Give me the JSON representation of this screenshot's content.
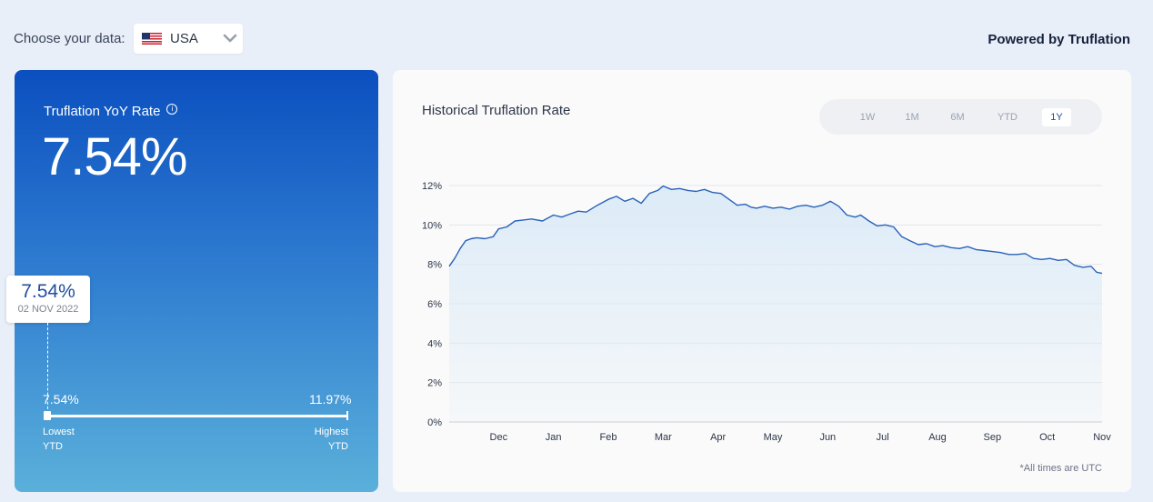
{
  "header": {
    "choose_label": "Choose your data:",
    "selected_country": "USA",
    "powered_by": "Powered by Truflation"
  },
  "summary": {
    "title": "Truflation YoY Rate",
    "info_icon": "info-icon",
    "value": "7.54%",
    "tooltip": {
      "value": "7.54%",
      "date": "02 NOV 2022"
    },
    "low": {
      "value": "7.54%",
      "label_line1": "Lowest",
      "label_line2": "YTD"
    },
    "high": {
      "value": "11.97%",
      "label_line1": "Highest",
      "label_line2": "YTD"
    },
    "current_position": 0.0
  },
  "chart_panel": {
    "title": "Historical Truflation Rate",
    "tabs": [
      {
        "label": "1W",
        "active": false
      },
      {
        "label": "1M",
        "active": false
      },
      {
        "label": "6M",
        "active": false
      },
      {
        "label": "YTD",
        "active": false
      },
      {
        "label": "1Y",
        "active": true
      }
    ],
    "note": "*All times are UTC"
  },
  "chart_data": {
    "type": "area",
    "title": "Historical Truflation Rate",
    "xlabel": "",
    "ylabel": "",
    "ylim": [
      0,
      12
    ],
    "yticks": [
      0,
      2,
      4,
      6,
      8,
      10,
      12
    ],
    "ytick_labels": [
      "0%",
      "2%",
      "4%",
      "6%",
      "8%",
      "10%",
      "12%"
    ],
    "xtick_labels": [
      "Dec",
      "Jan",
      "Feb",
      "Mar",
      "Apr",
      "May",
      "Jun",
      "Jul",
      "Aug",
      "Sep",
      "Oct",
      "Nov"
    ],
    "xtick_positions": [
      1,
      2,
      3,
      4,
      5,
      6,
      7,
      8,
      9,
      10,
      11,
      12
    ],
    "x_range": [
      0.1,
      12
    ],
    "grid": true,
    "line_color": "#2a62b8",
    "fill_color": "#dcebf7",
    "series": [
      {
        "x": [
          0.1,
          0.2,
          0.3,
          0.4,
          0.5,
          0.6,
          0.75,
          0.9,
          1.0,
          1.15,
          1.3,
          1.45,
          1.6,
          1.8,
          2.0,
          2.15,
          2.3,
          2.45,
          2.6,
          2.8,
          3.0,
          3.15,
          3.3,
          3.45,
          3.6,
          3.75,
          3.9,
          4.0,
          4.15,
          4.3,
          4.45,
          4.6,
          4.75,
          4.9,
          5.05,
          5.2,
          5.35,
          5.5,
          5.6,
          5.7,
          5.85,
          6.0,
          6.15,
          6.3,
          6.45,
          6.6,
          6.75,
          6.9,
          7.05,
          7.2,
          7.35,
          7.5,
          7.6,
          7.75,
          7.9,
          8.05,
          8.2,
          8.35,
          8.5,
          8.65,
          8.8,
          8.95,
          9.1,
          9.25,
          9.4,
          9.55,
          9.7,
          9.85,
          10.0,
          10.15,
          10.3,
          10.45,
          10.6,
          10.75,
          10.9,
          11.05,
          11.2,
          11.35,
          11.5,
          11.65,
          11.8,
          11.9,
          12.0
        ],
        "y": [
          7.9,
          8.3,
          8.8,
          9.2,
          9.3,
          9.35,
          9.3,
          9.4,
          9.8,
          9.9,
          10.2,
          10.25,
          10.3,
          10.2,
          10.5,
          10.4,
          10.55,
          10.7,
          10.65,
          11.0,
          11.3,
          11.45,
          11.2,
          11.35,
          11.1,
          11.6,
          11.75,
          11.97,
          11.8,
          11.85,
          11.75,
          11.7,
          11.8,
          11.65,
          11.6,
          11.3,
          11.0,
          11.05,
          10.9,
          10.85,
          10.95,
          10.85,
          10.9,
          10.8,
          10.95,
          11.0,
          10.9,
          11.0,
          11.2,
          10.95,
          10.5,
          10.4,
          10.5,
          10.2,
          9.95,
          10.0,
          9.9,
          9.4,
          9.2,
          9.0,
          9.05,
          8.9,
          8.95,
          8.85,
          8.8,
          8.9,
          8.75,
          8.7,
          8.65,
          8.6,
          8.5,
          8.5,
          8.55,
          8.3,
          8.25,
          8.3,
          8.2,
          8.25,
          7.95,
          7.85,
          7.9,
          7.6,
          7.54
        ]
      }
    ]
  }
}
